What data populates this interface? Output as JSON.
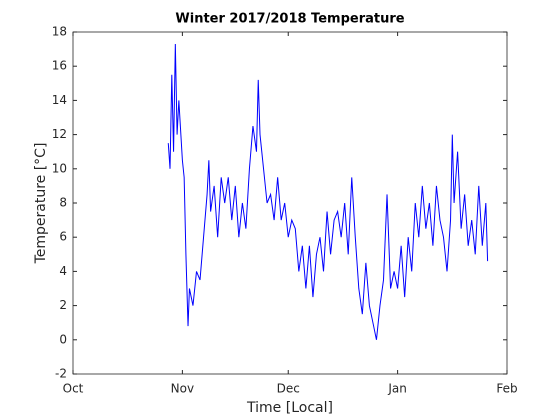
{
  "chart_data": {
    "type": "line",
    "title": "Winter 2017/2018 Temperature",
    "xlabel": "Time [Local]",
    "ylabel": "Temperature [°C]",
    "x": [
      27,
      27.5,
      28,
      28.5,
      29,
      29.5,
      30,
      31,
      31.5,
      32,
      32.6,
      33,
      34,
      35,
      36,
      37,
      38,
      38.5,
      39,
      40,
      41,
      42,
      43,
      44,
      45,
      46,
      47,
      48,
      49,
      50,
      51,
      52,
      52.5,
      53,
      54,
      55,
      56,
      57,
      58,
      59,
      60,
      61,
      62,
      63,
      64,
      65,
      66,
      67,
      68,
      69,
      70,
      71,
      72,
      73,
      74,
      75,
      76,
      77,
      78,
      79,
      80,
      81,
      82,
      83,
      84,
      85,
      86,
      87,
      88,
      89,
      90,
      91,
      92,
      93,
      94,
      95,
      96,
      97,
      98,
      99,
      100,
      101,
      102,
      103,
      104,
      105,
      106,
      107,
      107.5,
      108,
      109,
      110,
      111,
      112,
      113,
      114,
      115,
      116,
      117,
      117.5
    ],
    "series": [
      {
        "name": "Temperature",
        "color": "#0000ff",
        "values": [
          11.5,
          10,
          15.5,
          11,
          17.3,
          12,
          14,
          10.5,
          9.5,
          5,
          0.8,
          3,
          2,
          4,
          3.5,
          6,
          8.5,
          10.5,
          7.5,
          9,
          6,
          9.5,
          8,
          9.5,
          7,
          9,
          6,
          8,
          6.5,
          10,
          12.5,
          11,
          15.2,
          12,
          10,
          8,
          8.5,
          7,
          9.5,
          7,
          8,
          6,
          7,
          6.5,
          4,
          5.5,
          3,
          5.5,
          2.5,
          5,
          6,
          4,
          7.5,
          5,
          7,
          7.5,
          6,
          8,
          5,
          9.5,
          6,
          3,
          1.5,
          4.5,
          2,
          1,
          0,
          2,
          3.5,
          8.5,
          3,
          4,
          3,
          5.5,
          2.5,
          6,
          4,
          8,
          6,
          9,
          6.5,
          8,
          5.5,
          9,
          7,
          6,
          4,
          7,
          12,
          8,
          11,
          6.5,
          8.5,
          5.5,
          7,
          5,
          9,
          5.5,
          8,
          4.6
        ]
      }
    ],
    "xlim": [
      0,
      123
    ],
    "xticks": [
      {
        "value": 0,
        "label": "Oct"
      },
      {
        "value": 31,
        "label": "Nov"
      },
      {
        "value": 61,
        "label": "Dec"
      },
      {
        "value": 92,
        "label": "Jan"
      },
      {
        "value": 123,
        "label": "Feb"
      }
    ],
    "ylim": [
      -2,
      18
    ],
    "yticks": [
      -2,
      0,
      2,
      4,
      6,
      8,
      10,
      12,
      14,
      16,
      18
    ],
    "grid": false
  }
}
